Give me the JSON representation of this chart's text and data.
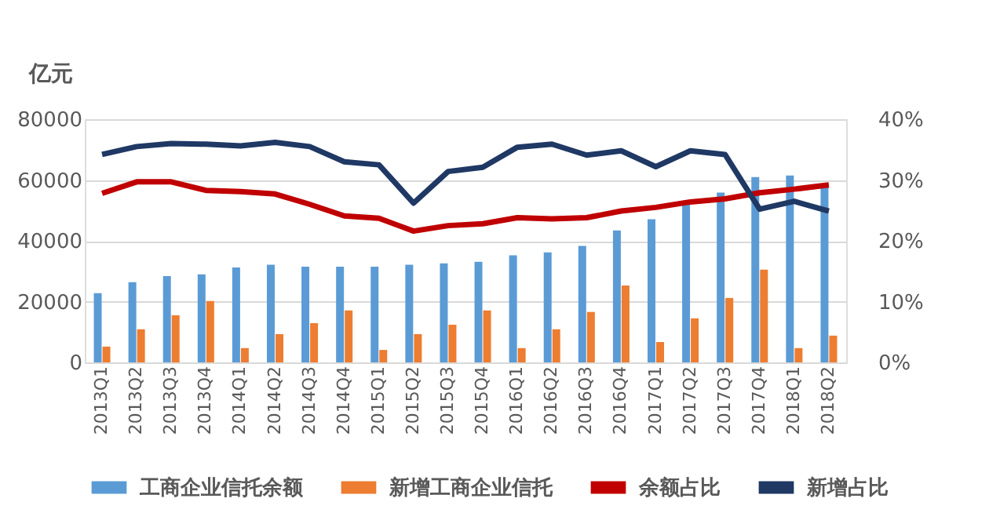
{
  "chart_data": {
    "type": "bar",
    "ylabel": "亿元",
    "categories": [
      "2013Q1",
      "2013Q2",
      "2013Q3",
      "2013Q4",
      "2014Q1",
      "2014Q2",
      "2014Q3",
      "2014Q4",
      "2015Q1",
      "2015Q2",
      "2015Q3",
      "2015Q4",
      "2016Q1",
      "2016Q2",
      "2016Q3",
      "2016Q4",
      "2017Q1",
      "2017Q2",
      "2017Q3",
      "2017Q4",
      "2018Q1",
      "2018Q2"
    ],
    "series": [
      {
        "name": "工商企业信托余额",
        "color": "#5b9bd5",
        "values": [
          22800,
          26400,
          28400,
          29000,
          31200,
          32100,
          31500,
          31500,
          31500,
          32100,
          32600,
          33100,
          35200,
          36200,
          38300,
          43400,
          47100,
          52100,
          55900,
          61000,
          61500,
          58000
        ]
      },
      {
        "name": "新增工商企业信托",
        "color": "#ed7d31",
        "values": [
          5200,
          10900,
          15500,
          20200,
          4700,
          9300,
          12900,
          17100,
          4100,
          9300,
          12400,
          17100,
          4700,
          10900,
          16600,
          25300,
          6700,
          14500,
          21200,
          30500,
          4700,
          8800
        ]
      },
      {
        "name": "余额占比",
        "color": "#c00000",
        "type": "line",
        "axis": "y2",
        "values": [
          27.8,
          29.7,
          29.7,
          28.3,
          28.1,
          27.7,
          26.0,
          24.1,
          23.7,
          21.6,
          22.5,
          22.8,
          23.8,
          23.6,
          23.8,
          24.9,
          25.5,
          26.4,
          26.9,
          27.9,
          28.5,
          29.2
        ]
      },
      {
        "name": "新增占比",
        "color": "#1f3864",
        "type": "line",
        "axis": "y2",
        "values": [
          34.2,
          35.5,
          36.0,
          35.9,
          35.6,
          36.2,
          35.5,
          33.0,
          32.5,
          26.2,
          31.4,
          32.1,
          35.4,
          35.9,
          34.1,
          34.8,
          32.2,
          34.8,
          34.2,
          25.2,
          26.5,
          24.9
        ]
      }
    ],
    "ylim": [
      0,
      80000
    ],
    "yticks": [
      0,
      20000,
      40000,
      60000,
      80000
    ],
    "y2lim": [
      0,
      40
    ],
    "y2ticks": [
      {
        "value": 0,
        "label": "0%"
      },
      {
        "value": 10,
        "label": "10%"
      },
      {
        "value": 20,
        "label": "20%"
      },
      {
        "value": 30,
        "label": "30%"
      },
      {
        "value": 40,
        "label": "40%"
      }
    ],
    "grid": "y",
    "legend": "bottom"
  }
}
